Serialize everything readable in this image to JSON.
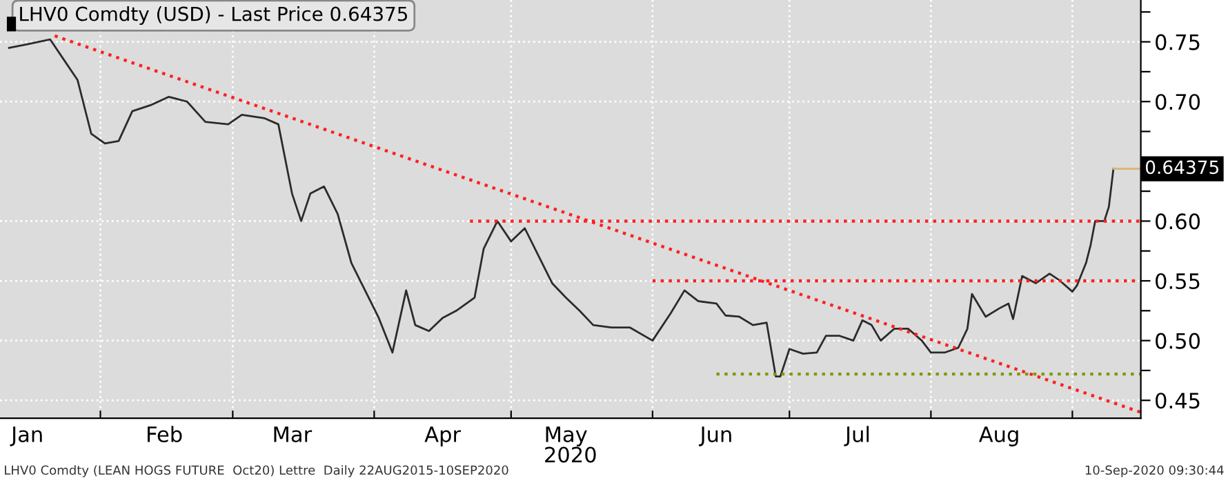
{
  "chart_data": {
    "type": "line",
    "title": "LHV0 Comdty (USD) - Last Price 0.64375",
    "xlabel": "2020",
    "x": [
      "2020-01-12",
      "2020-01-16",
      "2020-01-21",
      "2020-01-24",
      "2020-01-27",
      "2020-01-30",
      "2020-02-02",
      "2020-02-05",
      "2020-02-08",
      "2020-02-12",
      "2020-02-16",
      "2020-02-20",
      "2020-02-24",
      "2020-02-29",
      "2020-03-03",
      "2020-03-08",
      "2020-03-11",
      "2020-03-14",
      "2020-03-16",
      "2020-03-18",
      "2020-03-21",
      "2020-03-24",
      "2020-03-27",
      "2020-03-30",
      "2020-04-02",
      "2020-04-05",
      "2020-04-08",
      "2020-04-10",
      "2020-04-13",
      "2020-04-16",
      "2020-04-19",
      "2020-04-23",
      "2020-04-25",
      "2020-04-28",
      "2020-05-01",
      "2020-05-04",
      "2020-05-07",
      "2020-05-10",
      "2020-05-13",
      "2020-05-16",
      "2020-05-19",
      "2020-05-23",
      "2020-05-27",
      "2020-06-01",
      "2020-06-05",
      "2020-06-08",
      "2020-06-11",
      "2020-06-15",
      "2020-06-17",
      "2020-06-20",
      "2020-06-23",
      "2020-06-26",
      "2020-06-28",
      "2020-06-29",
      "2020-07-01",
      "2020-07-04",
      "2020-07-07",
      "2020-07-09",
      "2020-07-12",
      "2020-07-15",
      "2020-07-17",
      "2020-07-19",
      "2020-07-21",
      "2020-07-24",
      "2020-07-27",
      "2020-07-30",
      "2020-08-01",
      "2020-08-04",
      "2020-08-07",
      "2020-08-09",
      "2020-08-10",
      "2020-08-13",
      "2020-08-16",
      "2020-08-18",
      "2020-08-19",
      "2020-08-21",
      "2020-08-24",
      "2020-08-27",
      "2020-08-29",
      "2020-09-01",
      "2020-09-02",
      "2020-09-04",
      "2020-09-05",
      "2020-09-06",
      "2020-09-08",
      "2020-09-09",
      "2020-09-10"
    ],
    "series": [
      {
        "color": "#2b2b2b",
        "values": [
          0.745,
          0.748,
          0.752,
          0.735,
          0.718,
          0.673,
          0.665,
          0.667,
          0.692,
          0.697,
          0.704,
          0.7,
          0.683,
          0.681,
          0.689,
          0.686,
          0.681,
          0.623,
          0.6,
          0.623,
          0.629,
          0.606,
          0.565,
          0.542,
          0.519,
          0.49,
          0.542,
          0.513,
          0.508,
          0.519,
          0.525,
          0.536,
          0.577,
          0.6,
          0.583,
          0.594,
          0.571,
          0.548,
          0.536,
          0.525,
          0.513,
          0.511,
          0.511,
          0.5,
          0.523,
          0.542,
          0.533,
          0.531,
          0.521,
          0.52,
          0.513,
          0.515,
          0.47,
          0.47,
          0.493,
          0.489,
          0.49,
          0.504,
          0.504,
          0.5,
          0.517,
          0.513,
          0.5,
          0.51,
          0.51,
          0.5,
          0.49,
          0.49,
          0.494,
          0.51,
          0.539,
          0.52,
          0.527,
          0.531,
          0.518,
          0.554,
          0.548,
          0.556,
          0.551,
          0.541,
          0.546,
          0.565,
          0.58,
          0.6,
          0.6,
          0.612,
          0.64375
        ]
      },
      {
        "type": "line",
        "color": "#ff2020",
        "line_style": "dotted",
        "x": [
          "2020-01-22",
          "2020-09-16"
        ],
        "values": [
          0.755,
          0.44
        ]
      },
      {
        "type": "line",
        "color": "#ff2020",
        "line_style": "dotted",
        "x": [
          "2020-04-22",
          "2020-09-16"
        ],
        "values": [
          0.6,
          0.6
        ]
      },
      {
        "type": "line",
        "color": "#ff2020",
        "line_style": "dotted",
        "x": [
          "2020-06-01",
          "2020-09-16"
        ],
        "values": [
          0.55,
          0.55
        ]
      },
      {
        "type": "line",
        "color": "#7a9a01",
        "line_style": "dotted",
        "x": [
          "2020-06-15",
          "2020-09-16"
        ],
        "values": [
          0.472,
          0.472
        ]
      }
    ],
    "xlim": [
      "2020-01-10",
      "2020-09-16"
    ],
    "xticks": [
      {
        "value": "2020-02-01",
        "label": null
      },
      {
        "value": "2020-03-01",
        "label": null
      },
      {
        "value": "2020-04-01",
        "label": null
      },
      {
        "value": "2020-05-01",
        "label": null
      },
      {
        "value": "2020-06-01",
        "label": null
      },
      {
        "value": "2020-07-01",
        "label": null
      },
      {
        "value": "2020-08-01",
        "label": null
      },
      {
        "value": "2020-09-01",
        "label": null
      },
      {
        "value": "2020-01-16",
        "label": "Jan"
      },
      {
        "value": "2020-02-15",
        "label": "Feb"
      },
      {
        "value": "2020-03-14",
        "label": "Mar"
      },
      {
        "value": "2020-04-16",
        "label": "Apr"
      },
      {
        "value": "2020-05-13",
        "label": "May"
      },
      {
        "value": "2020-06-15",
        "label": "Jun"
      },
      {
        "value": "2020-07-16",
        "label": "Jul"
      },
      {
        "value": "2020-08-16",
        "label": "Aug"
      }
    ],
    "ylim": [
      0.435,
      0.785
    ],
    "yticks": [
      0.45,
      {
        "value": 0.475,
        "label": null
      },
      {
        "value": 0.5,
        "label": "0.50"
      },
      {
        "value": 0.525,
        "label": null
      },
      0.55,
      {
        "value": 0.575,
        "label": null
      },
      {
        "value": 0.6,
        "label": "0.60"
      },
      {
        "value": 0.625,
        "label": null
      },
      {
        "value": 0.65,
        "label": null
      },
      {
        "value": 0.675,
        "label": null
      },
      {
        "value": 0.7,
        "label": "0.70"
      },
      {
        "value": 0.725,
        "label": null
      },
      0.75,
      {
        "value": 0.775,
        "label": null
      }
    ],
    "grid": true,
    "annotations": [
      "LHV0 Comdty (LEAN HOGS FUTURE  Oct20) Lettre  Daily 22AUG2015-10SEP2020",
      "10-Sep-2020 09:30:44",
      {
        "text": "0.64375",
        "x": "2020-09-10",
        "y": 0.64375
      }
    ]
  }
}
